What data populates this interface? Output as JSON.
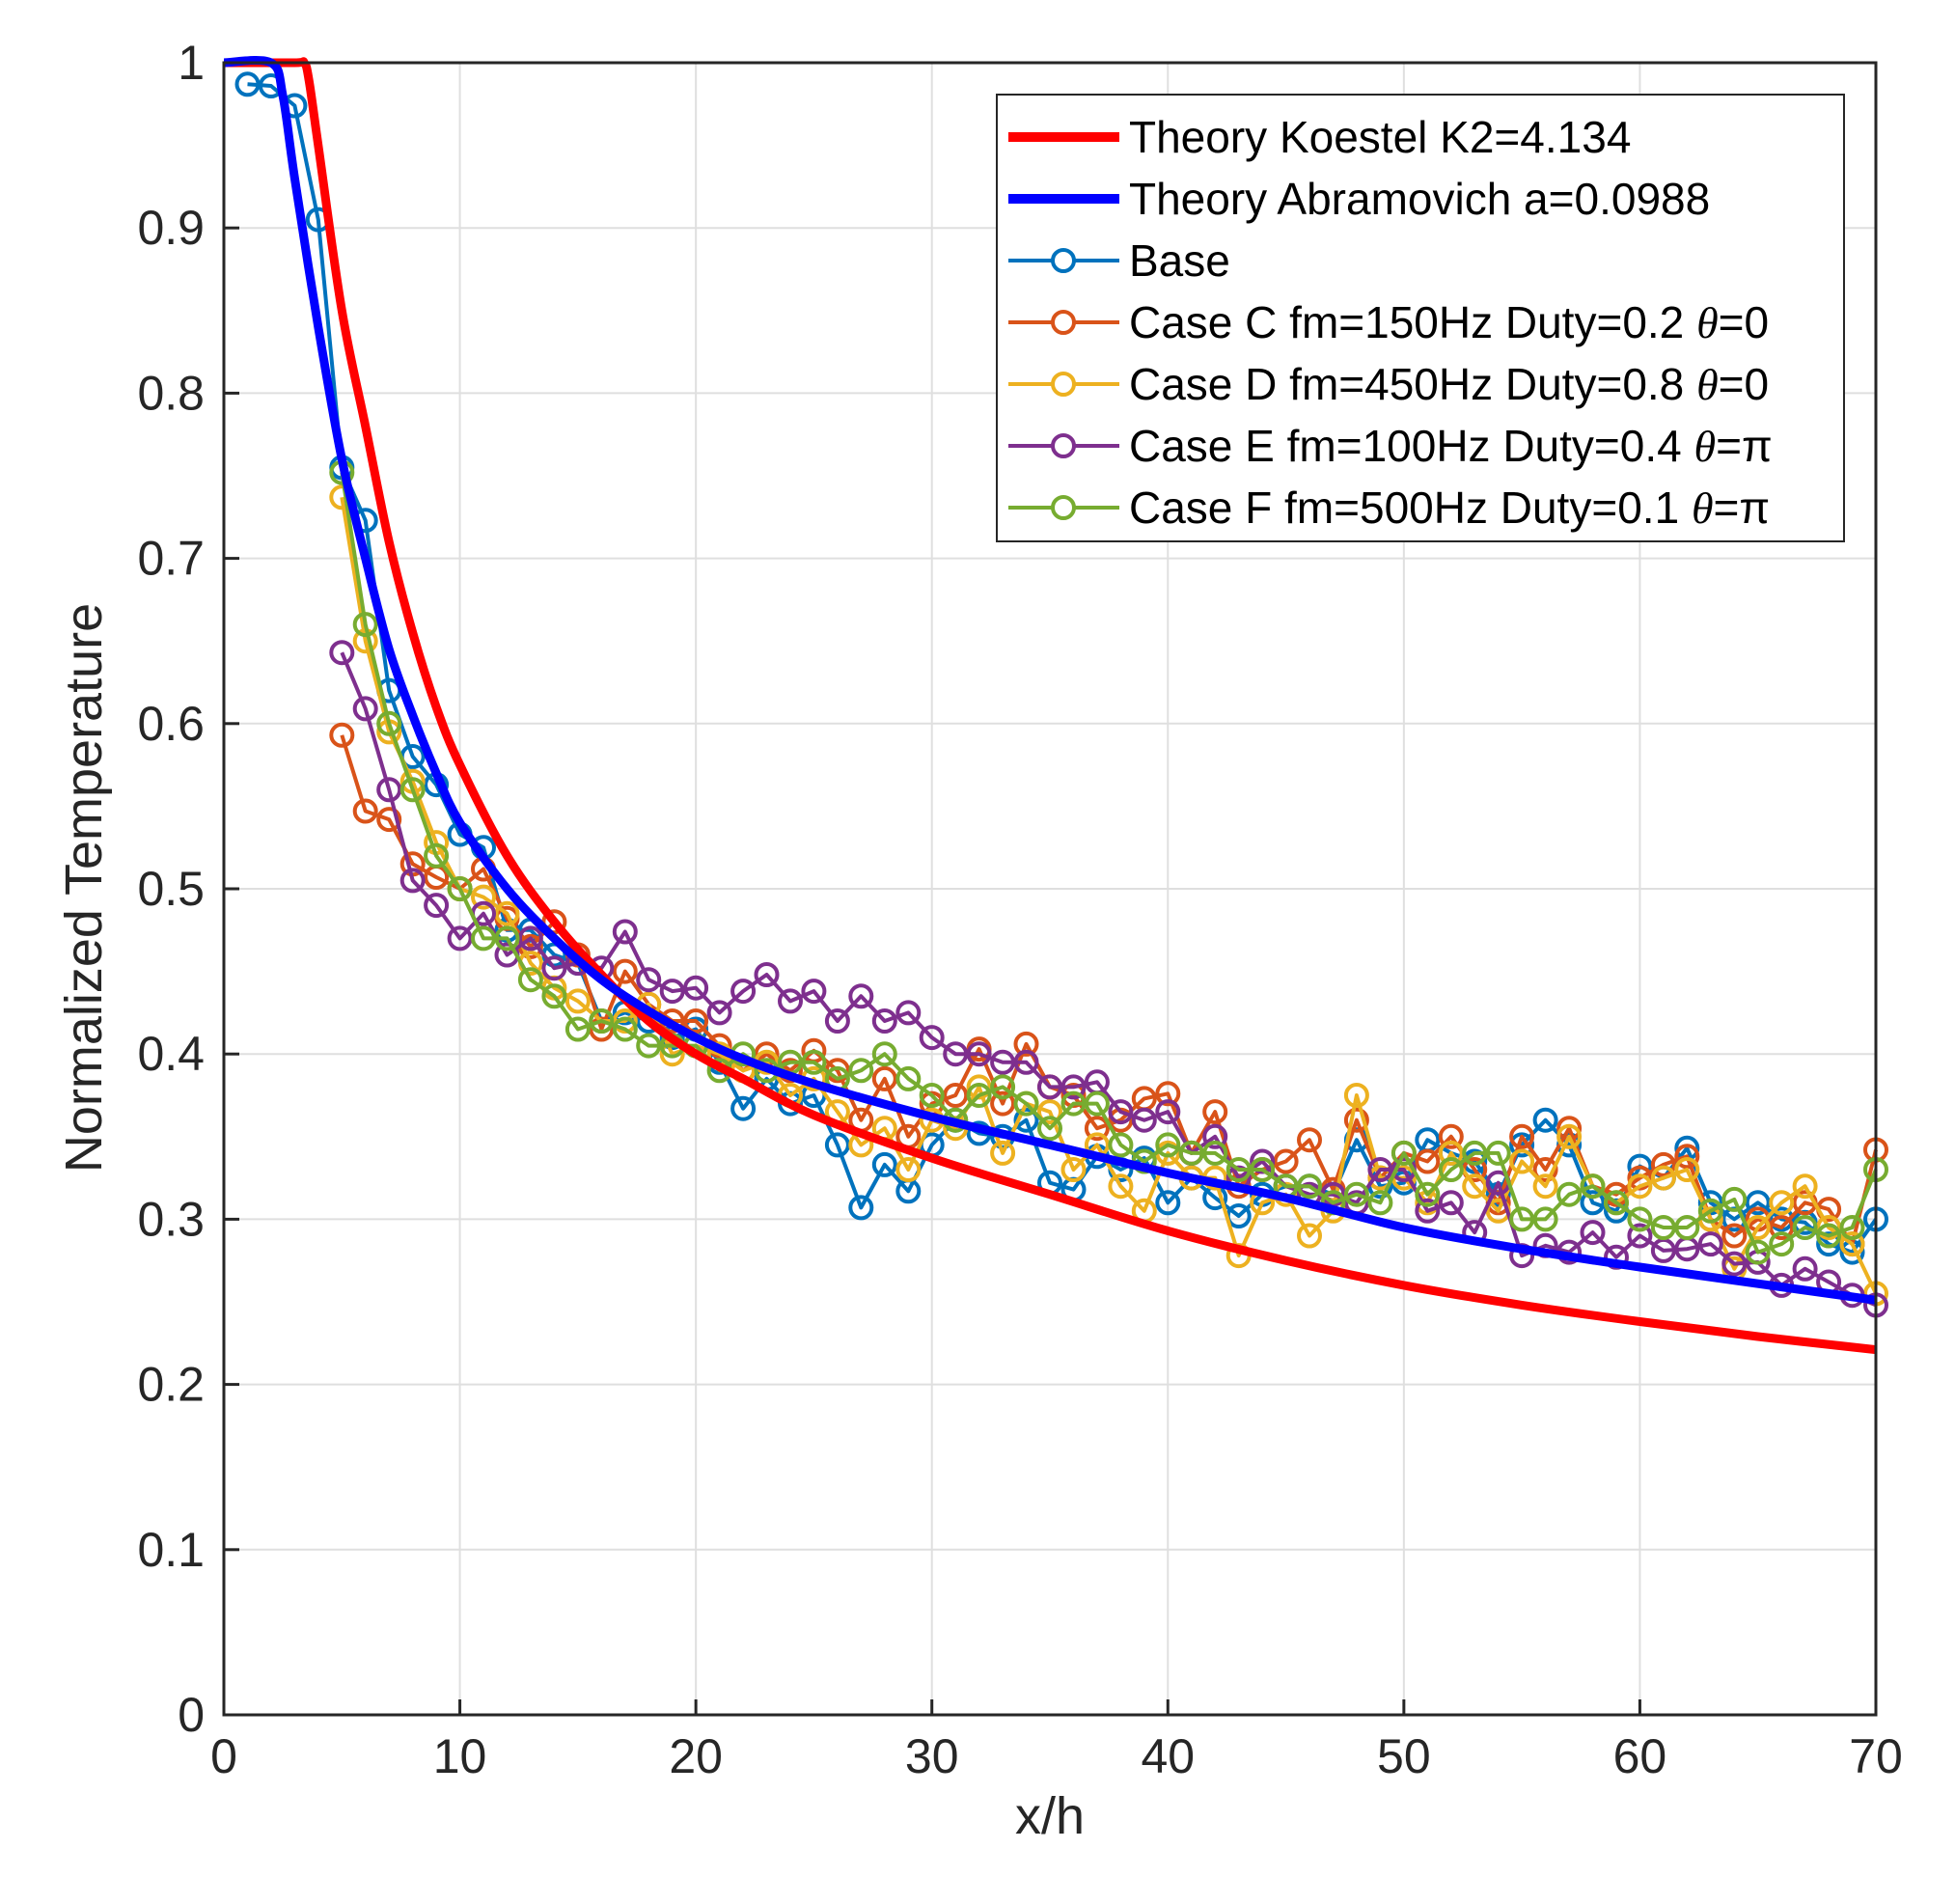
{
  "chart_data": {
    "type": "line",
    "title": "",
    "xlabel": "x/h",
    "ylabel": "Normalized Temperature",
    "xlim": [
      0,
      70
    ],
    "ylim": [
      0,
      1
    ],
    "grid": true,
    "legend_position": "top-right",
    "x_ticks": [
      "0",
      "10",
      "20",
      "30",
      "40",
      "50",
      "60",
      "70"
    ],
    "y_ticks": [
      "0",
      "0.1",
      "0.2",
      "0.3",
      "0.4",
      "0.5",
      "0.6",
      "0.7",
      "0.8",
      "0.9",
      "1"
    ],
    "legend": {
      "theory_koestel": "Theory Koestel K2=4.134",
      "theory_abramovich": "Theory Abramovich a=0.0988",
      "base": "Base",
      "case_c": {
        "prefix": "Case C fm=150Hz Duty=0.2 ",
        "symbol": "θ",
        "suffix": "=0"
      },
      "case_d": {
        "prefix": "Case D fm=450Hz Duty=0.8 ",
        "symbol": "θ",
        "suffix": "=0"
      },
      "case_e": {
        "prefix": "Case E fm=100Hz Duty=0.4 ",
        "symbol": "θ",
        "suffix": "=π"
      },
      "case_f": {
        "prefix": "Case F fm=500Hz Duty=0.1 ",
        "symbol": "θ",
        "suffix": "=π"
      }
    },
    "theory_series": [
      {
        "name": "Theory Koestel K2=4.134",
        "color": "#ff0000",
        "x": [
          0,
          3.0,
          3.4,
          3.6,
          4,
          5,
          6,
          7,
          8,
          9,
          10,
          12,
          14,
          16,
          18,
          20,
          22,
          25,
          30,
          35,
          40,
          45,
          50,
          55,
          60,
          65,
          70
        ],
        "y": [
          1,
          1,
          1,
          0.99,
          0.95,
          0.85,
          0.78,
          0.71,
          0.655,
          0.61,
          0.575,
          0.52,
          0.48,
          0.448,
          0.42,
          0.4,
          0.385,
          0.363,
          0.337,
          0.315,
          0.293,
          0.275,
          0.26,
          0.248,
          0.238,
          0.229,
          0.221
        ]
      },
      {
        "name": "Theory Abramovich a=0.0988",
        "color": "#0000ff",
        "x": [
          0,
          2.0,
          2.5,
          3,
          4,
          5,
          6,
          7,
          8,
          9,
          10,
          12,
          14,
          16,
          18,
          20,
          22,
          25,
          30,
          35,
          40,
          45,
          50,
          55,
          60,
          65,
          70
        ],
        "y": [
          1,
          1,
          0.98,
          0.93,
          0.84,
          0.76,
          0.7,
          0.645,
          0.605,
          0.57,
          0.54,
          0.5,
          0.47,
          0.445,
          0.426,
          0.41,
          0.397,
          0.382,
          0.362,
          0.345,
          0.328,
          0.313,
          0.295,
          0.282,
          0.271,
          0.261,
          0.251
        ]
      }
    ],
    "series": [
      {
        "name": "Base",
        "color": "#0072bd",
        "x": [
          1,
          2,
          3,
          4,
          5,
          6,
          7,
          8,
          9,
          10,
          11,
          12,
          13,
          14,
          15,
          16,
          17,
          18,
          19,
          20,
          21,
          22,
          23,
          24,
          25,
          26,
          27,
          28,
          29,
          30,
          31,
          32,
          33,
          34,
          35,
          36,
          37,
          38,
          39,
          40,
          41,
          42,
          43,
          44,
          45,
          46,
          47,
          48,
          49,
          50,
          51,
          52,
          53,
          54,
          55,
          56,
          57,
          58,
          59,
          60,
          61,
          62,
          63,
          64,
          65,
          66,
          67,
          68,
          69,
          70
        ],
        "y": [
          0.987,
          0.986,
          0.974,
          0.905,
          0.755,
          0.723,
          0.62,
          0.58,
          0.563,
          0.533,
          0.525,
          0.475,
          0.475,
          0.46,
          0.455,
          0.42,
          0.425,
          0.42,
          0.41,
          0.415,
          0.395,
          0.367,
          0.385,
          0.37,
          0.375,
          0.345,
          0.307,
          0.333,
          0.317,
          0.345,
          0.36,
          0.352,
          0.35,
          0.36,
          0.322,
          0.318,
          0.338,
          0.33,
          0.337,
          0.31,
          0.325,
          0.313,
          0.302,
          0.315,
          0.32,
          0.32,
          0.315,
          0.348,
          0.32,
          0.322,
          0.348,
          0.34,
          0.335,
          0.315,
          0.345,
          0.36,
          0.345,
          0.31,
          0.305,
          0.332,
          0.325,
          0.343,
          0.31,
          0.3,
          0.31,
          0.3,
          0.298,
          0.285,
          0.28,
          0.3
        ]
      },
      {
        "name": "Case C fm=150Hz Duty=0.2 θ=0",
        "color": "#d95319",
        "x": [
          5,
          6,
          7,
          8,
          9,
          10,
          11,
          12,
          13,
          14,
          15,
          16,
          17,
          18,
          19,
          20,
          21,
          22,
          23,
          24,
          25,
          26,
          27,
          28,
          29,
          30,
          31,
          32,
          33,
          34,
          35,
          36,
          37,
          38,
          39,
          40,
          41,
          42,
          43,
          44,
          45,
          46,
          47,
          48,
          49,
          50,
          51,
          52,
          53,
          54,
          55,
          56,
          57,
          58,
          59,
          60,
          61,
          62,
          63,
          64,
          65,
          66,
          67,
          68,
          69,
          70
        ],
        "y": [
          0.593,
          0.547,
          0.542,
          0.515,
          0.507,
          0.5,
          0.512,
          0.482,
          0.465,
          0.48,
          0.46,
          0.415,
          0.45,
          0.43,
          0.42,
          0.42,
          0.405,
          0.39,
          0.4,
          0.39,
          0.402,
          0.39,
          0.36,
          0.385,
          0.35,
          0.37,
          0.375,
          0.403,
          0.37,
          0.406,
          0.38,
          0.375,
          0.355,
          0.36,
          0.373,
          0.376,
          0.34,
          0.365,
          0.32,
          0.33,
          0.335,
          0.348,
          0.318,
          0.36,
          0.325,
          0.34,
          0.335,
          0.35,
          0.33,
          0.31,
          0.35,
          0.33,
          0.355,
          0.32,
          0.315,
          0.325,
          0.333,
          0.338,
          0.3,
          0.29,
          0.3,
          0.295,
          0.31,
          0.306,
          0.285,
          0.342
        ]
      },
      {
        "name": "Case D fm=450Hz Duty=0.8 θ=0",
        "color": "#edb120",
        "x": [
          5,
          6,
          7,
          8,
          9,
          10,
          11,
          12,
          13,
          14,
          15,
          16,
          17,
          18,
          19,
          20,
          21,
          22,
          23,
          24,
          25,
          26,
          27,
          28,
          29,
          30,
          31,
          32,
          33,
          34,
          35,
          36,
          37,
          38,
          39,
          40,
          41,
          42,
          43,
          44,
          45,
          46,
          47,
          48,
          49,
          50,
          51,
          52,
          53,
          54,
          55,
          56,
          57,
          58,
          59,
          60,
          61,
          62,
          63,
          64,
          65,
          66,
          67,
          68,
          69,
          70
        ],
        "y": [
          0.737,
          0.65,
          0.595,
          0.565,
          0.528,
          0.5,
          0.495,
          0.485,
          0.455,
          0.44,
          0.432,
          0.42,
          0.42,
          0.43,
          0.4,
          0.405,
          0.4,
          0.39,
          0.395,
          0.375,
          0.385,
          0.365,
          0.345,
          0.355,
          0.33,
          0.36,
          0.355,
          0.38,
          0.34,
          0.37,
          0.365,
          0.33,
          0.345,
          0.32,
          0.305,
          0.34,
          0.325,
          0.325,
          0.278,
          0.31,
          0.315,
          0.29,
          0.305,
          0.375,
          0.325,
          0.325,
          0.31,
          0.34,
          0.32,
          0.305,
          0.335,
          0.32,
          0.35,
          0.32,
          0.31,
          0.32,
          0.325,
          0.33,
          0.3,
          0.27,
          0.295,
          0.31,
          0.32,
          0.295,
          0.285,
          0.255
        ]
      },
      {
        "name": "Case E fm=100Hz Duty=0.4 θ=π",
        "color": "#7e2f8e",
        "x": [
          5,
          6,
          7,
          8,
          9,
          10,
          11,
          12,
          13,
          14,
          15,
          16,
          17,
          18,
          19,
          20,
          21,
          22,
          23,
          24,
          25,
          26,
          27,
          28,
          29,
          30,
          31,
          32,
          33,
          34,
          35,
          36,
          37,
          38,
          39,
          40,
          41,
          42,
          43,
          44,
          45,
          46,
          47,
          48,
          49,
          50,
          51,
          52,
          53,
          54,
          55,
          56,
          57,
          58,
          59,
          60,
          61,
          62,
          63,
          64,
          65,
          66,
          67,
          68,
          69,
          70
        ],
        "y": [
          0.643,
          0.609,
          0.56,
          0.505,
          0.49,
          0.47,
          0.485,
          0.46,
          0.47,
          0.452,
          0.455,
          0.452,
          0.474,
          0.445,
          0.438,
          0.44,
          0.425,
          0.438,
          0.448,
          0.432,
          0.438,
          0.42,
          0.435,
          0.42,
          0.425,
          0.41,
          0.4,
          0.4,
          0.395,
          0.395,
          0.38,
          0.38,
          0.383,
          0.365,
          0.36,
          0.365,
          0.34,
          0.35,
          0.325,
          0.335,
          0.32,
          0.315,
          0.315,
          0.31,
          0.33,
          0.33,
          0.305,
          0.31,
          0.292,
          0.322,
          0.278,
          0.284,
          0.28,
          0.292,
          0.277,
          0.29,
          0.281,
          0.282,
          0.285,
          0.273,
          0.274,
          0.26,
          0.27,
          0.262,
          0.254,
          0.248
        ]
      },
      {
        "name": "Case F fm=500Hz Duty=0.1 θ=π",
        "color": "#77ac30",
        "x": [
          5,
          6,
          7,
          8,
          9,
          10,
          11,
          12,
          13,
          14,
          15,
          16,
          17,
          18,
          19,
          20,
          21,
          22,
          23,
          24,
          25,
          26,
          27,
          28,
          29,
          30,
          31,
          32,
          33,
          34,
          35,
          36,
          37,
          38,
          39,
          40,
          41,
          42,
          43,
          44,
          45,
          46,
          47,
          48,
          49,
          50,
          51,
          52,
          53,
          54,
          55,
          56,
          57,
          58,
          59,
          60,
          61,
          62,
          63,
          64,
          65,
          66,
          67,
          68,
          69,
          70
        ],
        "y": [
          0.752,
          0.66,
          0.6,
          0.56,
          0.52,
          0.5,
          0.47,
          0.47,
          0.445,
          0.435,
          0.415,
          0.42,
          0.415,
          0.405,
          0.405,
          0.405,
          0.39,
          0.4,
          0.39,
          0.395,
          0.395,
          0.385,
          0.39,
          0.4,
          0.385,
          0.375,
          0.36,
          0.375,
          0.38,
          0.37,
          0.355,
          0.37,
          0.37,
          0.345,
          0.335,
          0.345,
          0.34,
          0.34,
          0.33,
          0.33,
          0.32,
          0.32,
          0.31,
          0.315,
          0.31,
          0.34,
          0.315,
          0.33,
          0.34,
          0.34,
          0.3,
          0.3,
          0.315,
          0.32,
          0.31,
          0.3,
          0.295,
          0.295,
          0.305,
          0.312,
          0.28,
          0.285,
          0.295,
          0.29,
          0.295,
          0.33
        ]
      }
    ]
  }
}
